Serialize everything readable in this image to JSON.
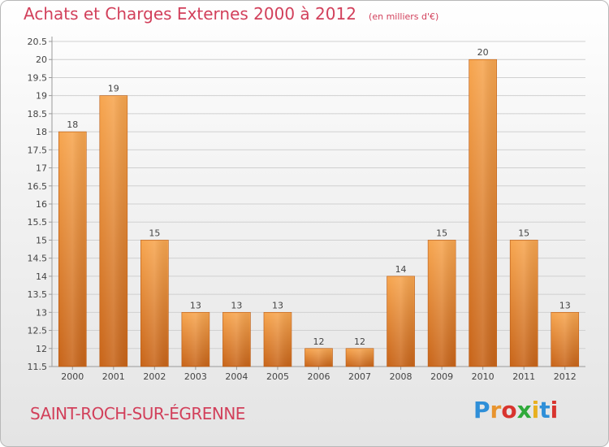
{
  "title": "Achats et Charges Externes 2000 à 2012",
  "unit": "(en milliers d'€)",
  "commune": "SAINT-ROCH-SUR-ÉGRENNE",
  "brand": {
    "text": "Proxiti",
    "letter_colors": [
      "#2f8fd8",
      "#e8942e",
      "#d8342e",
      "#2faa3a",
      "#e8b020",
      "#2f8fd8",
      "#d8342e"
    ]
  },
  "colors": {
    "accent": "#d2405b",
    "bar_light": "#f7a650",
    "bar_dark": "#c8651a",
    "grid": "#d0d0d0"
  },
  "chart_data": {
    "type": "bar",
    "categories": [
      "2000",
      "2001",
      "2002",
      "2003",
      "2004",
      "2005",
      "2006",
      "2007",
      "2008",
      "2009",
      "2010",
      "2011",
      "2012"
    ],
    "values": [
      18,
      19,
      15,
      13,
      13,
      13,
      12,
      12,
      14,
      15,
      20,
      15,
      13
    ],
    "data_labels": [
      "18",
      "19",
      "15",
      "13",
      "13",
      "13",
      "12",
      "12",
      "14",
      "15",
      "20",
      "15",
      "13"
    ],
    "ylim": [
      11.5,
      20.5
    ],
    "yticks": [
      "11.5",
      "12",
      "12.5",
      "13",
      "13.5",
      "14",
      "14.5",
      "15",
      "15.5",
      "16",
      "16.5",
      "17",
      "17.5",
      "18",
      "18.5",
      "19",
      "19.5",
      "20",
      "20.5"
    ],
    "grid": true,
    "xlabel": "",
    "ylabel": ""
  }
}
